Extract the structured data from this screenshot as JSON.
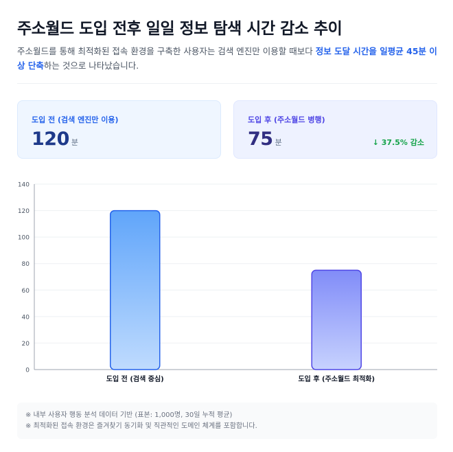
{
  "header": {
    "title": "주소월드 도입 전후 일일 정보 탐색 시간 감소 추이",
    "desc_part1": "주소월드를 통해 최적화된 접속 환경을 구축한 사용자는 검색 엔진만 이용할 때보다 ",
    "desc_highlight": "정보 도달 시간을 일평균 45분 이상 단축",
    "desc_part2": "하는 것으로 나타났습니다."
  },
  "cards": {
    "before": {
      "label": "도입 전 (검색 엔진만 이용)",
      "value": "120",
      "unit": "분"
    },
    "after": {
      "label": "도입 후 (주소월드 병행)",
      "value": "75",
      "unit": "분",
      "delta": "↓ 37.5% 감소"
    }
  },
  "chart_data": {
    "type": "bar",
    "categories": [
      "도입 전 (검색 중심)",
      "도입 후 (주소월드 최적화)"
    ],
    "values": [
      120,
      75
    ],
    "ylim": [
      0,
      140
    ],
    "yticks": [
      0,
      20,
      40,
      60,
      80,
      100,
      120,
      140
    ],
    "grid": true,
    "colors": {
      "before_top": "#60a5fa",
      "before_bottom": "#bfdbfe",
      "before_stroke": "#2563eb",
      "after_top": "#818cf8",
      "after_bottom": "#c7d2fe",
      "after_stroke": "#4f46e5",
      "grid": "#eef0f3",
      "axis": "#9ca3af",
      "tick_text": "#4b5563",
      "cat_text": "#111827"
    }
  },
  "notes": [
    "※ 내부 사용자 행동 분석 데이터 기반 (표본: 1,000명, 30일 누적 평균)",
    "※ 최적화된 접속 환경은 즐겨찾기 동기화 및 직관적인 도메인 체계를 포함합니다."
  ]
}
